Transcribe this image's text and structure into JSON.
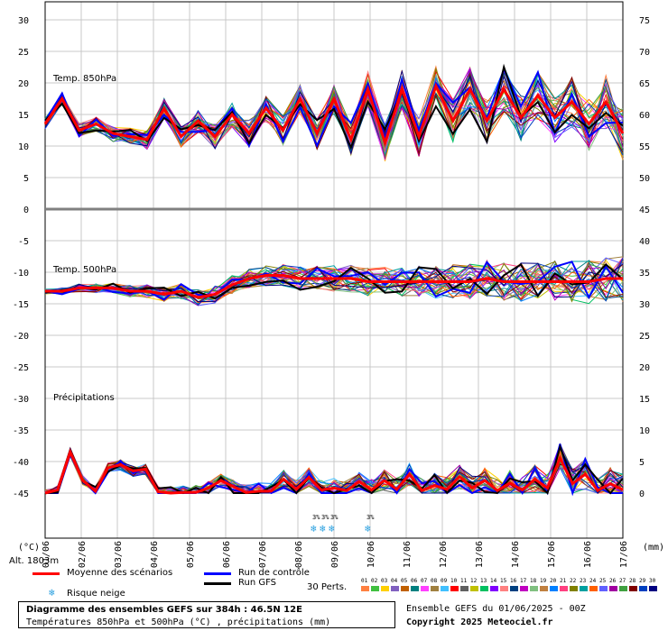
{
  "chart_data": {
    "type": "line",
    "x": [
      "02/06",
      "03/06",
      "04/06",
      "05/06",
      "06/06",
      "07/06",
      "08/06",
      "09/06",
      "10/06",
      "11/06",
      "12/06",
      "13/06",
      "14/06",
      "15/06",
      "16/06",
      "17/06"
    ],
    "first_date_label": "01/06",
    "left_axis": {
      "ticks": [
        30,
        25,
        20,
        15,
        10,
        5,
        0,
        -5,
        -10,
        -15,
        -20,
        -25,
        -30,
        -35,
        -40,
        -45
      ],
      "unit": "(°C)"
    },
    "right_axis": {
      "ticks": [
        75,
        70,
        65,
        60,
        55,
        50,
        45,
        40,
        35,
        30,
        25,
        20,
        15,
        10,
        5,
        0
      ],
      "unit": "(mm)"
    },
    "panels": [
      {
        "name": "Temp. 850hPa",
        "ylim": [
          0,
          30
        ]
      },
      {
        "name": "Temp. 500hPa",
        "ylim": [
          -45,
          -5
        ]
      },
      {
        "name": "Précipitations",
        "ylim": [
          0,
          15
        ]
      }
    ],
    "series": [
      {
        "name": "Moyenne des scénarios",
        "color": "#ff0000",
        "t850": [
          13.5,
          17.5,
          12.5,
          13.5,
          12,
          11.5,
          11,
          16,
          11.5,
          14,
          11.5,
          15,
          12,
          16,
          12.5,
          17.5,
          12,
          17.5,
          11,
          19,
          10.5,
          19,
          11.5,
          19.5,
          14,
          19,
          14,
          19,
          14.5,
          18,
          14.5,
          17,
          13.5,
          17,
          12
        ],
        "t500": [
          -13,
          -13,
          -12.5,
          -12.5,
          -12.5,
          -13,
          -13,
          -13.5,
          -13,
          -14,
          -13.5,
          -12,
          -11,
          -10.5,
          -10.5,
          -11,
          -11,
          -11,
          -11,
          -11.5,
          -11.5,
          -11.5,
          -11.5,
          -11.5,
          -11.5,
          -11.5,
          -11,
          -11.5,
          -11.5,
          -11.5,
          -11.5,
          -11.5,
          -11.5,
          -11,
          -11
        ],
        "precip": [
          0,
          0.5,
          6.5,
          2,
          0.3,
          4,
          4.5,
          3.5,
          3.8,
          0.2,
          0,
          0.1,
          0.1,
          0.8,
          2,
          1,
          0.1,
          0.3,
          0.3,
          2.2,
          0.6,
          2.5,
          0.5,
          0.8,
          0.4,
          1.8,
          0.5,
          2,
          0.6,
          3,
          0.4,
          1.2,
          0.6,
          2.6,
          0.8,
          2,
          0.4,
          1.6,
          0.5,
          2.2,
          0.8,
          5.5,
          1.5,
          3,
          0.4,
          1.5,
          0.5
        ]
      },
      {
        "name": "Run de contrôle",
        "color": "#0000ff"
      },
      {
        "name": "Run GFS",
        "color": "#000000"
      }
    ]
  },
  "labels": {
    "panel_850": "Temp. 850hPa",
    "panel_500": "Temp. 500hPa",
    "panel_precip": "Précipitations",
    "left_unit": "(°C)",
    "right_unit": "(mm)",
    "altitude": "Alt. 1803m"
  },
  "legend": {
    "mean": "Moyenne des scénarios",
    "control": "Run de contrôle",
    "gfs": "Run GFS",
    "snow": "Risque neige",
    "perts": "30 Perts.",
    "pert_numbers": [
      "01",
      "02",
      "03",
      "04",
      "05",
      "06",
      "07",
      "08",
      "09",
      "10",
      "11",
      "12",
      "13",
      "14",
      "15",
      "16",
      "17",
      "18",
      "19",
      "20",
      "21",
      "22",
      "23",
      "24",
      "25",
      "26",
      "27",
      "28",
      "29",
      "30"
    ],
    "pert_colors": [
      "#ff8040",
      "#40c040",
      "#ffd000",
      "#8060c0",
      "#c06000",
      "#008080",
      "#ff40ff",
      "#a08040",
      "#40c0ff",
      "#ff0000",
      "#606060",
      "#c0c000",
      "#00c060",
      "#8000ff",
      "#ff8080",
      "#004080",
      "#c000c0",
      "#80c080",
      "#c08040",
      "#0080ff",
      "#ff4080",
      "#808000",
      "#00a0a0",
      "#ff6000",
      "#6060ff",
      "#a000a0",
      "#40a040",
      "#800000",
      "#0040c0",
      "#000080"
    ]
  },
  "footer": {
    "title": "Diagramme des ensembles GEFS sur 384h : 46.5N 12E",
    "subtitle": "Températures 850hPa et 500hPa (°C) , précipitations (mm)",
    "ensemble_info": "Ensemble GEFS du 01/06/2025 - 00Z",
    "copyright": "Copyright 2025 Meteociel.fr"
  },
  "snow_risk": {
    "labels": [
      "3%",
      "3%",
      "3%",
      "3%"
    ],
    "dates": [
      "08/06",
      "08/06",
      "09/06",
      "09/06"
    ]
  }
}
